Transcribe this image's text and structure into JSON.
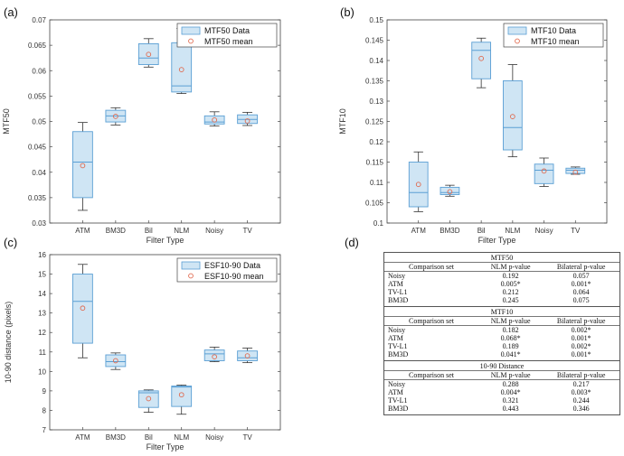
{
  "chart_data": [
    {
      "type": "boxplot",
      "panel_label": "(a)",
      "ylabel": "MTF50",
      "xlabel": "Filter Type",
      "ylim": [
        0.03,
        0.07
      ],
      "yticks": [
        0.03,
        0.035,
        0.04,
        0.045,
        0.05,
        0.055,
        0.06,
        0.065,
        0.07
      ],
      "ytick_labels": [
        "0.03",
        "0.035",
        "0.04",
        "0.045",
        "0.05",
        "0.055",
        "0.06",
        "0.065",
        "0.07"
      ],
      "categories": [
        "ATM",
        "BM3D",
        "Bil",
        "NLM",
        "Noisy",
        "TV"
      ],
      "legend": [
        "MTF50 Data",
        "MTF50 mean"
      ],
      "legend_position": "top-right",
      "boxes": [
        {
          "min": 0.0325,
          "q1": 0.035,
          "median": 0.042,
          "q3": 0.048,
          "max": 0.0498
        },
        {
          "min": 0.0493,
          "q1": 0.0499,
          "median": 0.0511,
          "q3": 0.0522,
          "max": 0.0527
        },
        {
          "min": 0.0607,
          "q1": 0.0612,
          "median": 0.0625,
          "q3": 0.0653,
          "max": 0.0663
        },
        {
          "min": 0.0555,
          "q1": 0.0558,
          "median": 0.057,
          "q3": 0.0655,
          "max": 0.0683
        },
        {
          "min": 0.0491,
          "q1": 0.0495,
          "median": 0.0499,
          "q3": 0.0511,
          "max": 0.0519
        },
        {
          "min": 0.0492,
          "q1": 0.0496,
          "median": 0.0504,
          "q3": 0.0513,
          "max": 0.0518
        }
      ],
      "means": [
        0.0413,
        0.051,
        0.0632,
        0.0602,
        0.0503,
        0.0501
      ]
    },
    {
      "type": "boxplot",
      "panel_label": "(b)",
      "ylabel": "MTF10",
      "xlabel": "Filter Type",
      "ylim": [
        0.1,
        0.15
      ],
      "yticks": [
        0.1,
        0.105,
        0.11,
        0.115,
        0.12,
        0.125,
        0.13,
        0.135,
        0.14,
        0.145,
        0.15
      ],
      "ytick_labels": [
        "0.1",
        "0.105",
        "0.11",
        "0.115",
        "0.12",
        "0.125",
        "0.13",
        "0.135",
        "0.14",
        "0.145",
        "0.15"
      ],
      "categories": [
        "ATM",
        "BM3D",
        "Bil",
        "NLM",
        "Noisy",
        "TV"
      ],
      "legend": [
        "MTF10 Data",
        "MTF10 mean"
      ],
      "legend_position": "top-right",
      "boxes": [
        {
          "min": 0.1028,
          "q1": 0.104,
          "median": 0.1075,
          "q3": 0.115,
          "max": 0.1175
        },
        {
          "min": 0.1066,
          "q1": 0.107,
          "median": 0.1075,
          "q3": 0.1088,
          "max": 0.1093
        },
        {
          "min": 0.1333,
          "q1": 0.1355,
          "median": 0.1425,
          "q3": 0.1445,
          "max": 0.1455
        },
        {
          "min": 0.1163,
          "q1": 0.118,
          "median": 0.1235,
          "q3": 0.135,
          "max": 0.139
        },
        {
          "min": 0.109,
          "q1": 0.1097,
          "median": 0.113,
          "q3": 0.1145,
          "max": 0.116
        },
        {
          "min": 0.112,
          "q1": 0.1122,
          "median": 0.113,
          "q3": 0.1135,
          "max": 0.1138
        }
      ],
      "means": [
        0.1095,
        0.1077,
        0.1405,
        0.1262,
        0.1128,
        0.1125
      ]
    },
    {
      "type": "boxplot",
      "panel_label": "(c)",
      "ylabel": "10-90 distance (pixels)",
      "xlabel": "Filter Type",
      "ylim": [
        7,
        16
      ],
      "yticks": [
        7,
        8,
        9,
        10,
        11,
        12,
        13,
        14,
        15,
        16
      ],
      "ytick_labels": [
        "7",
        "8",
        "9",
        "10",
        "11",
        "12",
        "13",
        "14",
        "15",
        "16"
      ],
      "categories": [
        "ATM",
        "BM3D",
        "Bil",
        "NLM",
        "Noisy",
        "TV"
      ],
      "legend": [
        "ESF10-90 Data",
        "ESF10-90 mean"
      ],
      "legend_position": "top-right",
      "boxes": [
        {
          "min": 10.7,
          "q1": 11.45,
          "median": 13.6,
          "q3": 15.0,
          "max": 15.5
        },
        {
          "min": 10.1,
          "q1": 10.25,
          "median": 10.5,
          "q3": 10.85,
          "max": 10.95
        },
        {
          "min": 7.9,
          "q1": 8.15,
          "median": 8.9,
          "q3": 9.0,
          "max": 9.05
        },
        {
          "min": 7.8,
          "q1": 8.2,
          "median": 9.2,
          "q3": 9.25,
          "max": 9.3
        },
        {
          "min": 10.5,
          "q1": 10.55,
          "median": 10.9,
          "q3": 11.1,
          "max": 11.25
        },
        {
          "min": 10.45,
          "q1": 10.55,
          "median": 10.7,
          "q3": 11.05,
          "max": 11.2
        }
      ],
      "means": [
        13.25,
        10.55,
        8.6,
        8.8,
        10.75,
        10.8
      ]
    }
  ],
  "table": {
    "panel_label": "(d)",
    "sections": [
      {
        "title": "MTF50",
        "headers": [
          "Comparison set",
          "NLM p-value",
          "Bilateral p-value"
        ],
        "rows": [
          [
            "Noisy",
            "0.192",
            "0.057"
          ],
          [
            "ATM",
            "0.005*",
            "0.001*"
          ],
          [
            "TV-L1",
            "0.212",
            "0.064"
          ],
          [
            "BM3D",
            "0.245",
            "0.075"
          ]
        ]
      },
      {
        "title": "MTF10",
        "headers": [
          "Comparison set",
          "NLM p-value",
          "Bilateral p-value"
        ],
        "rows": [
          [
            "Noisy",
            "0.182",
            "0.002*"
          ],
          [
            "ATM",
            "0.068*",
            "0.001*"
          ],
          [
            "TV-L1",
            "0.189",
            "0.002*"
          ],
          [
            "BM3D",
            "0.041*",
            "0.001*"
          ]
        ]
      },
      {
        "title": "10-90 Distance",
        "headers": [
          "Comparison set",
          "NLM p-value",
          "Bilateral p-value"
        ],
        "rows": [
          [
            "Noisy",
            "0.288",
            "0.217"
          ],
          [
            "ATM",
            "0.004*",
            "0.003*"
          ],
          [
            "TV-L1",
            "0.321",
            "0.244"
          ],
          [
            "BM3D",
            "0.443",
            "0.346"
          ]
        ]
      }
    ]
  },
  "colors": {
    "box_fill": "#cfe5f4",
    "box_edge": "#5a9fd4",
    "whisker": "#333333",
    "mean_marker": "#e06a4f",
    "axis": "#444444"
  }
}
